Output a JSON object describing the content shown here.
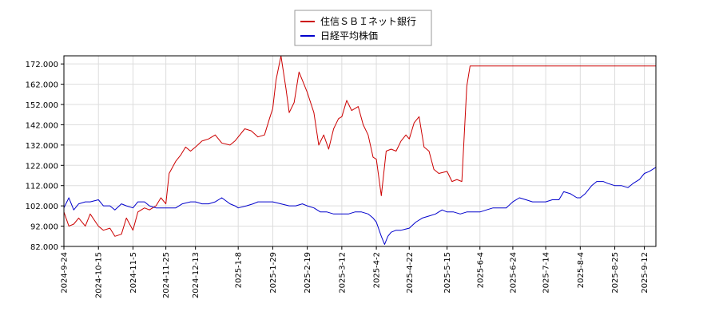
{
  "chart_data": {
    "type": "line",
    "title": "",
    "xlabel": "",
    "ylabel": "",
    "ylim": [
      82,
      176
    ],
    "y_ticks": [
      82,
      92,
      102,
      112,
      122,
      132,
      142,
      152,
      162,
      172
    ],
    "y_tick_labels": [
      "82.000",
      "92.000",
      "102.000",
      "112.000",
      "122.000",
      "132.000",
      "142.000",
      "152.000",
      "162.000",
      "172.000"
    ],
    "x_range": [
      "2024-09-24",
      "2025-09-19"
    ],
    "x_ticks": [
      "2024-9-24",
      "2024-10-15",
      "2024-11-5",
      "2024-11-25",
      "2024-12-13",
      "2025-1-8",
      "2025-1-29",
      "2025-2-19",
      "2025-3-12",
      "2025-4-2",
      "2025-4-22",
      "2025-5-15",
      "2025-6-4",
      "2025-6-24",
      "2025-7-14",
      "2025-8-4",
      "2025-8-25",
      "2025-9-12"
    ],
    "grid": true,
    "legend_position": "top-center",
    "series": [
      {
        "name": "住信ＳＢＩネット銀行",
        "color": "#cc0000",
        "points": [
          [
            "2024-09-24",
            99
          ],
          [
            "2024-09-27",
            92
          ],
          [
            "2024-09-30",
            93
          ],
          [
            "2024-10-03",
            96
          ],
          [
            "2024-10-07",
            92
          ],
          [
            "2024-10-10",
            98
          ],
          [
            "2024-10-15",
            92
          ],
          [
            "2024-10-18",
            90
          ],
          [
            "2024-10-22",
            91
          ],
          [
            "2024-10-25",
            87
          ],
          [
            "2024-10-29",
            88
          ],
          [
            "2024-11-01",
            96
          ],
          [
            "2024-11-05",
            90
          ],
          [
            "2024-11-08",
            99
          ],
          [
            "2024-11-12",
            101
          ],
          [
            "2024-11-15",
            100
          ],
          [
            "2024-11-19",
            102
          ],
          [
            "2024-11-22",
            106
          ],
          [
            "2024-11-25",
            103
          ],
          [
            "2024-11-27",
            118
          ],
          [
            "2024-12-01",
            124
          ],
          [
            "2024-12-04",
            127
          ],
          [
            "2024-12-07",
            131
          ],
          [
            "2024-12-10",
            129
          ],
          [
            "2024-12-13",
            131
          ],
          [
            "2024-12-17",
            134
          ],
          [
            "2024-12-21",
            135
          ],
          [
            "2024-12-25",
            137
          ],
          [
            "2024-12-29",
            133
          ],
          [
            "2025-01-03",
            132
          ],
          [
            "2025-01-06",
            134
          ],
          [
            "2025-01-08",
            136
          ],
          [
            "2025-01-12",
            140
          ],
          [
            "2025-01-16",
            139
          ],
          [
            "2025-01-20",
            136
          ],
          [
            "2025-01-24",
            137
          ],
          [
            "2025-01-27",
            145
          ],
          [
            "2025-01-29",
            150
          ],
          [
            "2025-01-31",
            164
          ],
          [
            "2025-02-03",
            176
          ],
          [
            "2025-02-06",
            160
          ],
          [
            "2025-02-08",
            148
          ],
          [
            "2025-02-11",
            153
          ],
          [
            "2025-02-14",
            168
          ],
          [
            "2025-02-17",
            162
          ],
          [
            "2025-02-19",
            158
          ],
          [
            "2025-02-23",
            148
          ],
          [
            "2025-02-26",
            132
          ],
          [
            "2025-03-01",
            137
          ],
          [
            "2025-03-04",
            130
          ],
          [
            "2025-03-07",
            140
          ],
          [
            "2025-03-10",
            145
          ],
          [
            "2025-03-12",
            146
          ],
          [
            "2025-03-15",
            154
          ],
          [
            "2025-03-18",
            149
          ],
          [
            "2025-03-22",
            151
          ],
          [
            "2025-03-25",
            142
          ],
          [
            "2025-03-28",
            137
          ],
          [
            "2025-03-31",
            126
          ],
          [
            "2025-04-02",
            125
          ],
          [
            "2025-04-05",
            107
          ],
          [
            "2025-04-08",
            129
          ],
          [
            "2025-04-11",
            130
          ],
          [
            "2025-04-14",
            129
          ],
          [
            "2025-04-17",
            134
          ],
          [
            "2025-04-20",
            137
          ],
          [
            "2025-04-22",
            135
          ],
          [
            "2025-04-25",
            143
          ],
          [
            "2025-04-28",
            146
          ],
          [
            "2025-05-01",
            131
          ],
          [
            "2025-05-04",
            129
          ],
          [
            "2025-05-07",
            120
          ],
          [
            "2025-05-10",
            118
          ],
          [
            "2025-05-15",
            119
          ],
          [
            "2025-05-18",
            114
          ],
          [
            "2025-05-21",
            115
          ],
          [
            "2025-05-24",
            114
          ],
          [
            "2025-05-27",
            161
          ],
          [
            "2025-05-29",
            171
          ],
          [
            "2025-06-04",
            171
          ],
          [
            "2025-06-24",
            171
          ],
          [
            "2025-07-10",
            171
          ],
          [
            "2025-07-14",
            171
          ],
          [
            "2025-08-04",
            171
          ],
          [
            "2025-08-25",
            171
          ],
          [
            "2025-09-12",
            171
          ],
          [
            "2025-09-19",
            171
          ]
        ]
      },
      {
        "name": "日経平均株価",
        "color": "#0000cc",
        "points": [
          [
            "2024-09-24",
            101
          ],
          [
            "2024-09-27",
            106
          ],
          [
            "2024-09-30",
            100
          ],
          [
            "2024-10-03",
            103
          ],
          [
            "2024-10-07",
            104
          ],
          [
            "2024-10-10",
            104
          ],
          [
            "2024-10-15",
            105
          ],
          [
            "2024-10-18",
            102
          ],
          [
            "2024-10-22",
            102
          ],
          [
            "2024-10-25",
            100
          ],
          [
            "2024-10-29",
            103
          ],
          [
            "2024-11-01",
            102
          ],
          [
            "2024-11-05",
            101
          ],
          [
            "2024-11-08",
            104
          ],
          [
            "2024-11-12",
            104
          ],
          [
            "2024-11-15",
            102
          ],
          [
            "2024-11-19",
            101
          ],
          [
            "2024-11-22",
            101
          ],
          [
            "2024-11-25",
            101
          ],
          [
            "2024-11-28",
            101
          ],
          [
            "2024-12-01",
            101
          ],
          [
            "2024-12-05",
            103
          ],
          [
            "2024-12-10",
            104
          ],
          [
            "2024-12-13",
            104
          ],
          [
            "2024-12-17",
            103
          ],
          [
            "2024-12-21",
            103
          ],
          [
            "2024-12-25",
            104
          ],
          [
            "2024-12-29",
            106
          ],
          [
            "2025-01-03",
            103
          ],
          [
            "2025-01-06",
            102
          ],
          [
            "2025-01-08",
            101
          ],
          [
            "2025-01-13",
            102
          ],
          [
            "2025-01-17",
            103
          ],
          [
            "2025-01-20",
            104
          ],
          [
            "2025-01-24",
            104
          ],
          [
            "2025-01-29",
            104
          ],
          [
            "2025-02-03",
            103
          ],
          [
            "2025-02-08",
            102
          ],
          [
            "2025-02-12",
            102
          ],
          [
            "2025-02-16",
            103
          ],
          [
            "2025-02-19",
            102
          ],
          [
            "2025-02-23",
            101
          ],
          [
            "2025-02-27",
            99
          ],
          [
            "2025-03-03",
            99
          ],
          [
            "2025-03-07",
            98
          ],
          [
            "2025-03-12",
            98
          ],
          [
            "2025-03-16",
            98
          ],
          [
            "2025-03-20",
            99
          ],
          [
            "2025-03-24",
            99
          ],
          [
            "2025-03-28",
            98
          ],
          [
            "2025-03-31",
            96
          ],
          [
            "2025-04-02",
            94
          ],
          [
            "2025-04-05",
            87
          ],
          [
            "2025-04-07",
            83
          ],
          [
            "2025-04-09",
            87
          ],
          [
            "2025-04-11",
            89
          ],
          [
            "2025-04-14",
            90
          ],
          [
            "2025-04-17",
            90
          ],
          [
            "2025-04-22",
            91
          ],
          [
            "2025-04-26",
            94
          ],
          [
            "2025-04-30",
            96
          ],
          [
            "2025-05-04",
            97
          ],
          [
            "2025-05-08",
            98
          ],
          [
            "2025-05-12",
            100
          ],
          [
            "2025-05-15",
            99
          ],
          [
            "2025-05-19",
            99
          ],
          [
            "2025-05-23",
            98
          ],
          [
            "2025-05-27",
            99
          ],
          [
            "2025-05-31",
            99
          ],
          [
            "2025-06-04",
            99
          ],
          [
            "2025-06-08",
            100
          ],
          [
            "2025-06-12",
            101
          ],
          [
            "2025-06-16",
            101
          ],
          [
            "2025-06-20",
            101
          ],
          [
            "2025-06-24",
            104
          ],
          [
            "2025-06-28",
            106
          ],
          [
            "2025-07-02",
            105
          ],
          [
            "2025-07-06",
            104
          ],
          [
            "2025-07-10",
            104
          ],
          [
            "2025-07-14",
            104
          ],
          [
            "2025-07-18",
            105
          ],
          [
            "2025-07-22",
            105
          ],
          [
            "2025-07-25",
            109
          ],
          [
            "2025-07-29",
            108
          ],
          [
            "2025-08-02",
            106
          ],
          [
            "2025-08-04",
            106
          ],
          [
            "2025-08-07",
            108
          ],
          [
            "2025-08-11",
            112
          ],
          [
            "2025-08-14",
            114
          ],
          [
            "2025-08-18",
            114
          ],
          [
            "2025-08-21",
            113
          ],
          [
            "2025-08-25",
            112
          ],
          [
            "2025-08-29",
            112
          ],
          [
            "2025-09-02",
            111
          ],
          [
            "2025-09-05",
            113
          ],
          [
            "2025-09-09",
            115
          ],
          [
            "2025-09-12",
            118
          ],
          [
            "2025-09-15",
            119
          ],
          [
            "2025-09-19",
            121
          ]
        ]
      }
    ]
  }
}
